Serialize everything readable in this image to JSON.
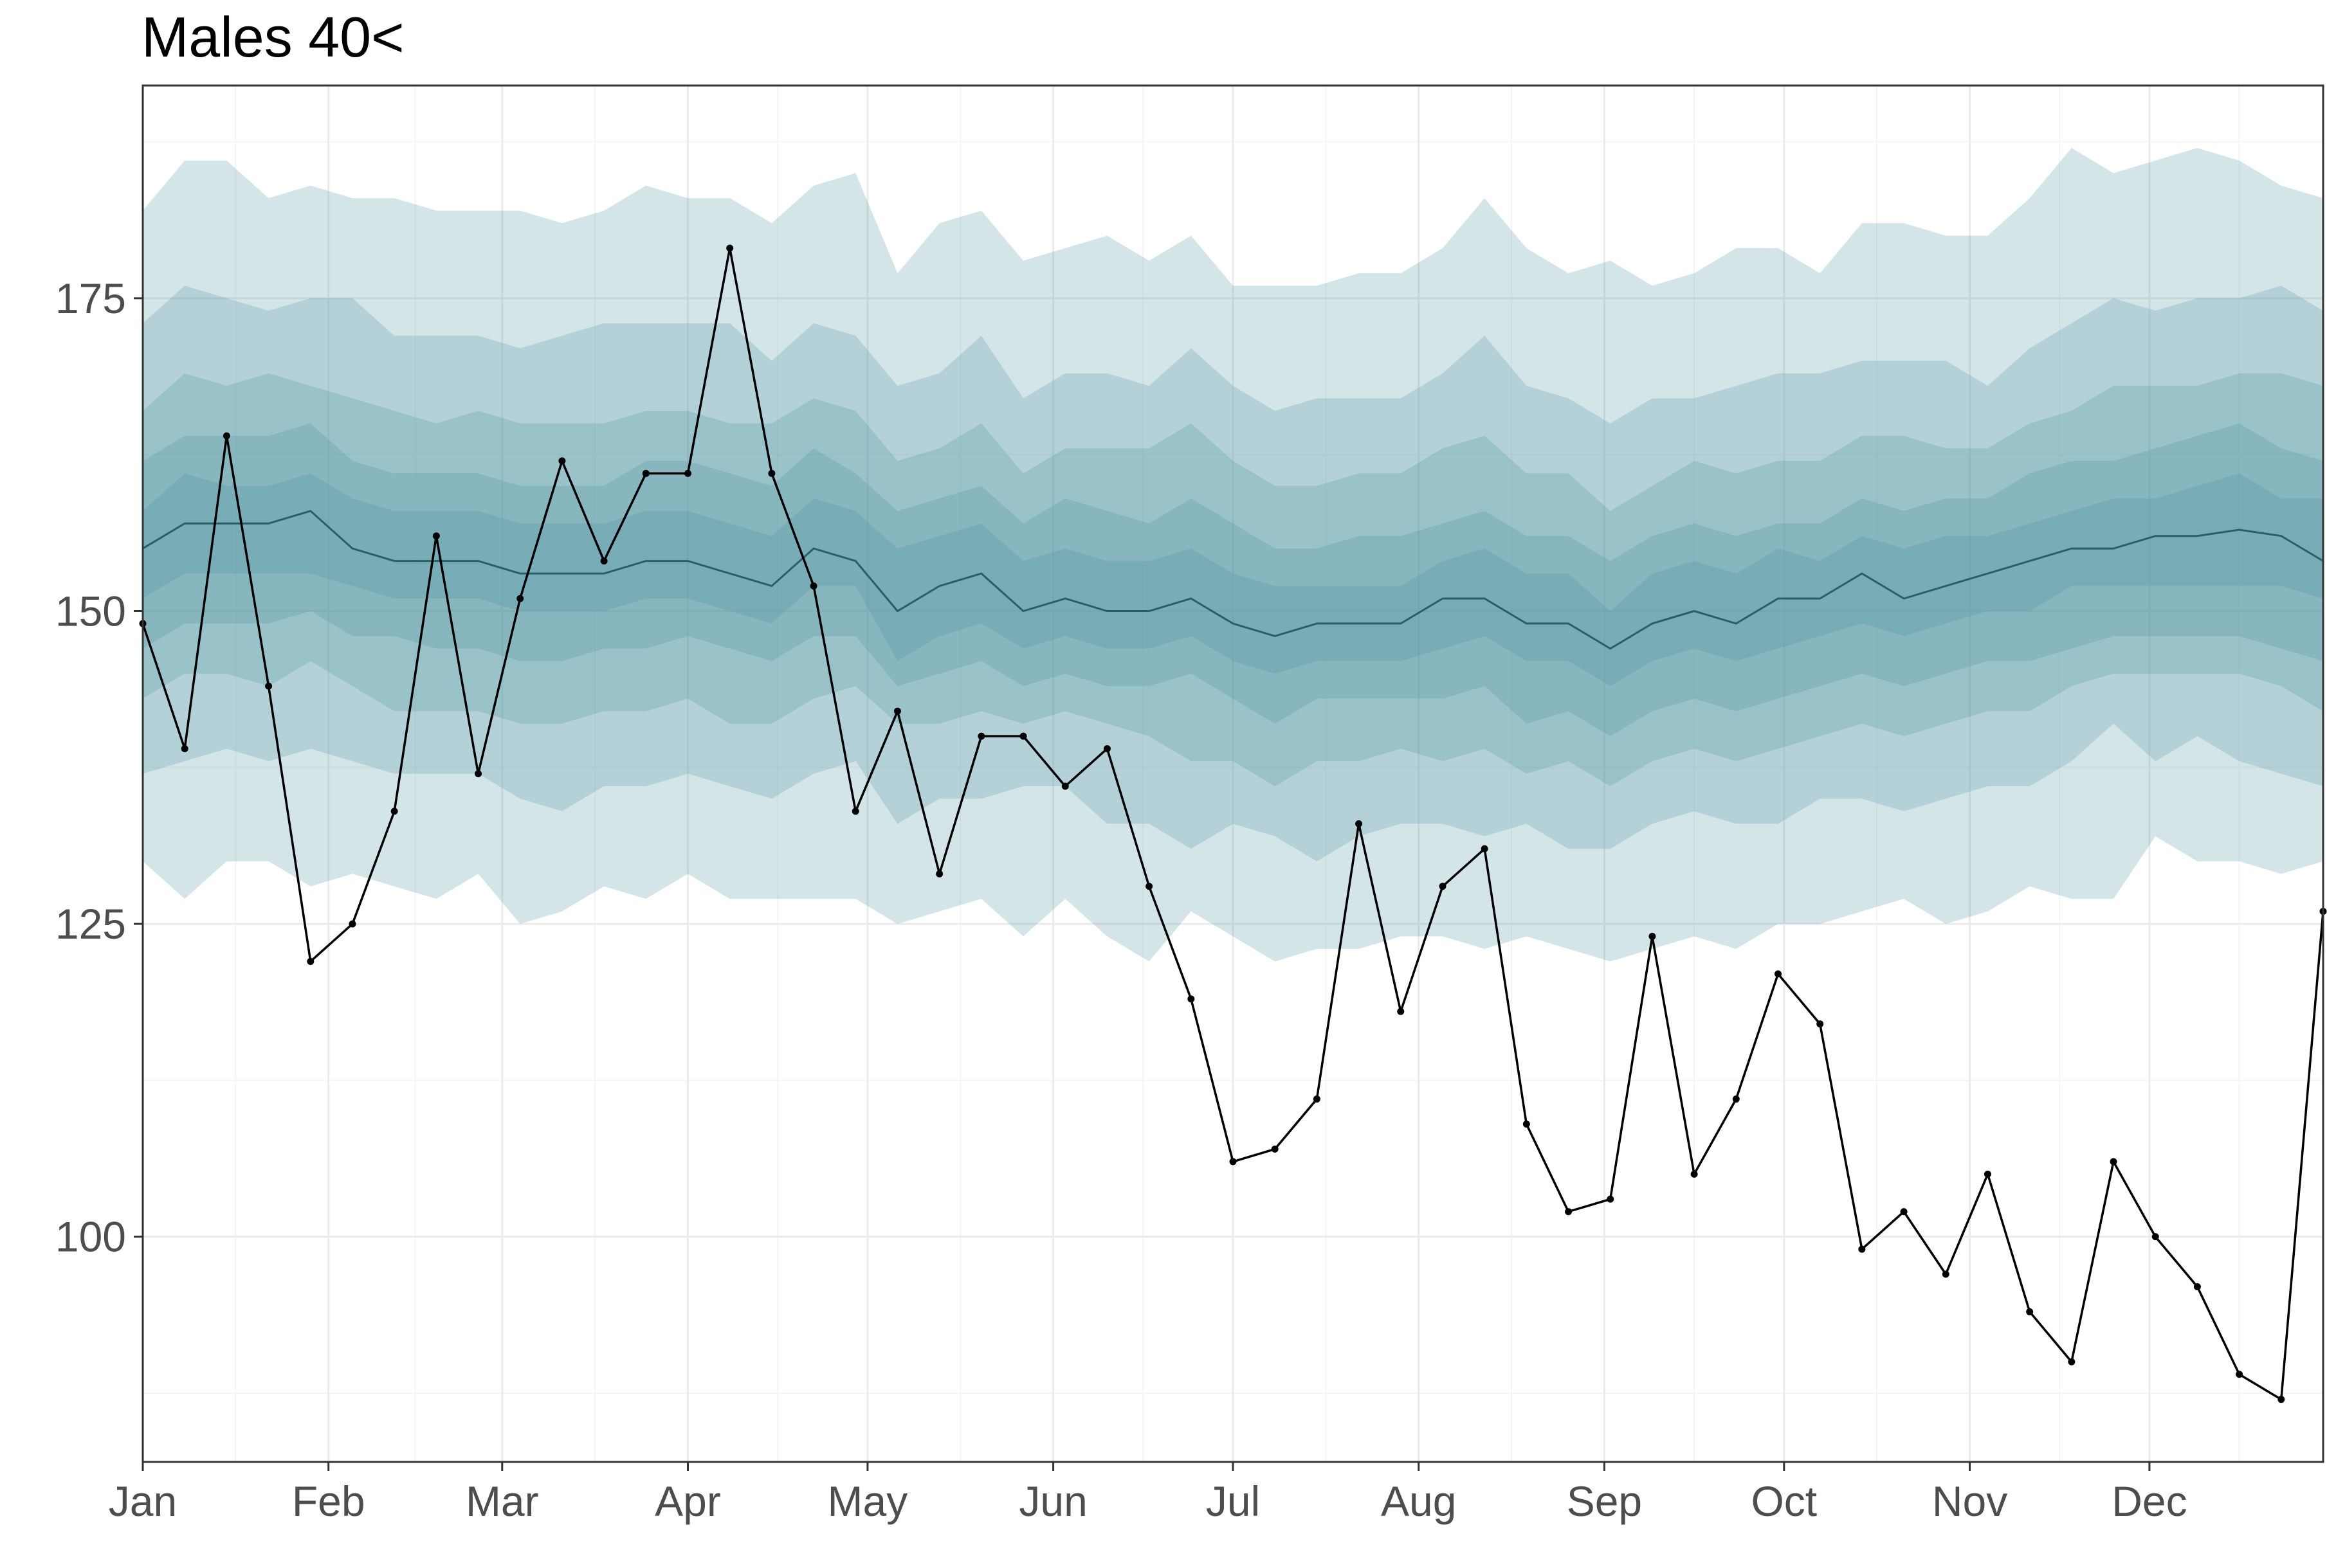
{
  "chart_data": {
    "type": "line",
    "title": "Males 40<",
    "xlabel": "",
    "ylabel": "",
    "x_axis": {
      "type": "date",
      "range": [
        "2020-01-01",
        "2020-12-30"
      ],
      "tick_labels": [
        "Jan",
        "Feb",
        "Mar",
        "Apr",
        "May",
        "Jun",
        "Jul",
        "Aug",
        "Sep",
        "Oct",
        "Nov",
        "Dec"
      ],
      "tick_dates": [
        "2020-01-01",
        "2020-02-01",
        "2020-03-01",
        "2020-04-01",
        "2020-05-01",
        "2020-06-01",
        "2020-07-01",
        "2020-08-01",
        "2020-09-01",
        "2020-10-01",
        "2020-11-01",
        "2020-12-01"
      ]
    },
    "y_axis": {
      "range": [
        82,
        192
      ],
      "ticks": [
        100,
        125,
        150,
        175
      ]
    },
    "grid": true,
    "legend": "none",
    "colors": {
      "band_fill": "#4a939e",
      "median_line": "#2b5f66",
      "observed_line": "#000000",
      "panel_border": "#333333",
      "grid_major": "#ebebeb",
      "grid_minor": "#f5f5f5"
    },
    "band_opacity": [
      0.24,
      0.24,
      0.24,
      0.24,
      0.24
    ],
    "x": [
      "2020-01-01",
      "2020-01-08",
      "2020-01-15",
      "2020-01-22",
      "2020-01-29",
      "2020-02-05",
      "2020-02-12",
      "2020-02-19",
      "2020-02-26",
      "2020-03-04",
      "2020-03-11",
      "2020-03-18",
      "2020-03-25",
      "2020-04-01",
      "2020-04-08",
      "2020-04-15",
      "2020-04-22",
      "2020-04-29",
      "2020-05-06",
      "2020-05-13",
      "2020-05-20",
      "2020-05-27",
      "2020-06-03",
      "2020-06-10",
      "2020-06-17",
      "2020-06-24",
      "2020-07-01",
      "2020-07-08",
      "2020-07-15",
      "2020-07-22",
      "2020-07-29",
      "2020-08-05",
      "2020-08-12",
      "2020-08-19",
      "2020-08-26",
      "2020-09-02",
      "2020-09-09",
      "2020-09-16",
      "2020-09-23",
      "2020-09-30",
      "2020-10-07",
      "2020-10-14",
      "2020-10-21",
      "2020-10-28",
      "2020-11-04",
      "2020-11-11",
      "2020-11-18",
      "2020-11-25",
      "2020-12-02",
      "2020-12-09",
      "2020-12-16",
      "2020-12-23",
      "2020-12-30"
    ],
    "series": [
      {
        "role": "observed",
        "values": [
          149,
          139,
          164,
          144,
          122,
          125,
          134,
          156,
          137,
          151,
          162,
          154,
          161,
          161,
          179,
          161,
          152,
          134,
          142,
          129,
          140,
          140,
          136,
          139,
          128,
          119,
          106,
          107,
          111,
          133,
          118,
          128,
          131,
          109,
          102,
          103,
          124,
          105,
          111,
          121,
          117,
          99,
          102,
          97,
          105,
          94,
          90,
          106,
          100,
          96,
          89,
          87,
          126
        ]
      },
      {
        "role": "median",
        "values": [
          155,
          157,
          157,
          157,
          158,
          155,
          154,
          154,
          154,
          153,
          153,
          153,
          154,
          154,
          153,
          152,
          155,
          154,
          150,
          152,
          153,
          150,
          151,
          150,
          150,
          151,
          149,
          148,
          149,
          149,
          149,
          151,
          151,
          149,
          149,
          147,
          149,
          150,
          149,
          151,
          151,
          153,
          151,
          152,
          153,
          154,
          155,
          155,
          156,
          156,
          156.5,
          156,
          154
        ]
      }
    ],
    "bands": [
      {
        "lower": [
          137,
          138,
          139,
          138,
          139,
          138,
          137,
          137,
          137,
          135,
          134,
          136,
          136,
          137,
          136,
          135,
          137,
          138,
          133,
          135,
          135,
          136,
          136,
          133,
          133,
          131,
          133,
          132,
          130,
          132,
          133,
          133,
          132,
          133,
          131,
          131,
          133,
          134,
          133,
          133,
          135,
          135,
          134,
          135,
          136,
          136,
          138,
          141,
          138,
          140,
          138,
          137,
          136
        ],
        "upper": [
          173,
          176,
          175,
          174,
          175,
          175,
          172,
          172,
          172,
          171,
          172,
          173,
          173,
          173,
          173,
          170,
          173,
          172,
          168,
          169,
          172,
          167,
          169,
          169,
          168,
          171,
          168,
          166,
          167,
          167,
          167,
          169,
          172,
          168,
          167,
          165,
          167,
          167,
          168,
          169,
          169,
          170,
          170,
          170,
          168,
          171,
          173,
          175,
          174,
          175,
          175,
          176,
          174
        ]
      },
      {
        "lower": [
          130,
          127,
          130,
          130,
          128,
          129,
          128,
          127,
          129,
          125,
          126,
          128,
          127,
          129,
          127,
          127,
          127,
          127,
          125,
          126,
          127,
          124,
          127,
          124,
          122,
          126,
          124,
          122,
          123,
          123,
          124,
          124,
          123,
          124,
          123,
          122,
          123,
          124,
          123,
          125,
          125,
          126,
          127,
          125,
          126,
          128,
          127,
          127,
          132,
          130,
          130,
          129,
          130
        ],
        "upper": [
          182,
          186,
          186,
          183,
          184,
          183,
          183,
          182,
          182,
          182,
          181,
          182,
          184,
          183,
          183,
          181,
          184,
          185,
          177,
          181,
          182,
          178,
          179,
          180,
          178,
          180,
          176,
          176,
          176,
          177,
          177,
          179,
          183,
          179,
          177,
          178,
          176,
          177,
          179,
          179,
          177,
          181,
          181,
          180,
          180,
          183,
          187,
          185,
          186,
          187,
          186,
          184,
          183
        ]
      },
      {
        "lower": [
          143,
          145,
          145,
          144,
          146,
          144,
          142,
          142,
          142,
          141,
          141,
          142,
          142,
          143,
          141,
          141,
          143,
          144,
          141,
          141,
          142,
          141,
          142,
          141,
          140,
          138,
          138,
          136,
          138,
          138,
          139,
          138,
          139,
          137,
          138,
          136,
          138,
          139,
          138,
          139,
          140,
          141,
          140,
          141,
          142,
          142,
          144,
          145,
          145,
          145,
          145,
          144,
          142
        ]
      },
      {
        "upper": [
          166,
          169,
          168,
          169,
          168,
          167,
          166,
          165,
          166,
          165,
          165,
          165,
          166,
          166,
          165,
          165,
          167,
          166,
          162,
          163,
          165,
          161,
          163,
          163,
          163,
          165,
          162,
          160,
          160,
          161,
          161,
          163,
          164,
          161,
          161,
          158,
          160,
          162,
          161,
          162,
          162,
          164,
          164,
          163,
          163,
          165,
          166,
          168,
          168,
          168,
          169,
          169,
          168
        ]
      },
      {
        "lower": [
          147,
          149,
          149,
          149,
          150,
          148,
          148,
          147,
          147,
          146,
          146,
          147,
          147,
          148,
          147,
          146,
          148,
          148,
          144,
          145,
          146,
          144,
          145,
          144,
          144,
          145,
          143,
          141,
          143,
          143,
          143,
          143,
          144,
          141,
          142,
          140,
          142,
          143,
          142,
          143,
          144,
          145,
          144,
          145,
          146,
          146,
          147,
          148,
          148,
          148,
          148,
          147,
          146
        ],
        "upper": [
          162,
          164,
          164,
          164,
          165,
          162,
          161,
          161,
          161,
          160,
          160,
          160,
          162,
          162,
          161,
          160,
          163,
          161,
          158,
          159,
          160,
          157,
          159,
          158,
          157,
          159,
          157,
          155,
          155,
          156,
          156,
          157,
          158,
          156,
          156,
          154,
          156,
          157,
          156,
          157,
          157,
          159,
          158,
          159,
          159,
          161,
          162,
          162,
          163,
          164,
          165,
          163,
          162
        ]
      },
      {
        "lower": [
          151,
          153,
          153,
          153,
          153,
          152,
          151,
          151,
          151,
          150,
          150,
          150,
          151,
          151,
          150,
          149,
          152,
          152,
          146,
          148,
          149,
          147,
          148,
          147,
          147,
          148,
          146,
          145,
          146,
          146,
          146,
          147,
          148,
          146,
          146,
          144,
          146,
          147,
          146,
          147,
          148,
          149,
          148,
          149,
          150,
          150,
          152,
          152,
          152,
          152,
          152,
          152,
          151
        ],
        "upper": [
          158,
          161,
          160,
          160,
          161,
          159,
          158,
          158,
          158,
          157,
          157,
          157,
          158,
          158,
          157,
          156,
          159,
          158,
          155,
          156,
          157,
          154,
          155,
          154,
          154,
          155,
          153,
          152,
          152,
          152,
          152,
          154,
          155,
          153,
          153,
          150,
          153,
          154,
          153,
          155,
          154,
          156,
          155,
          156,
          156,
          157,
          158,
          159,
          159,
          160,
          161,
          159,
          159
        ]
      }
    ]
  }
}
